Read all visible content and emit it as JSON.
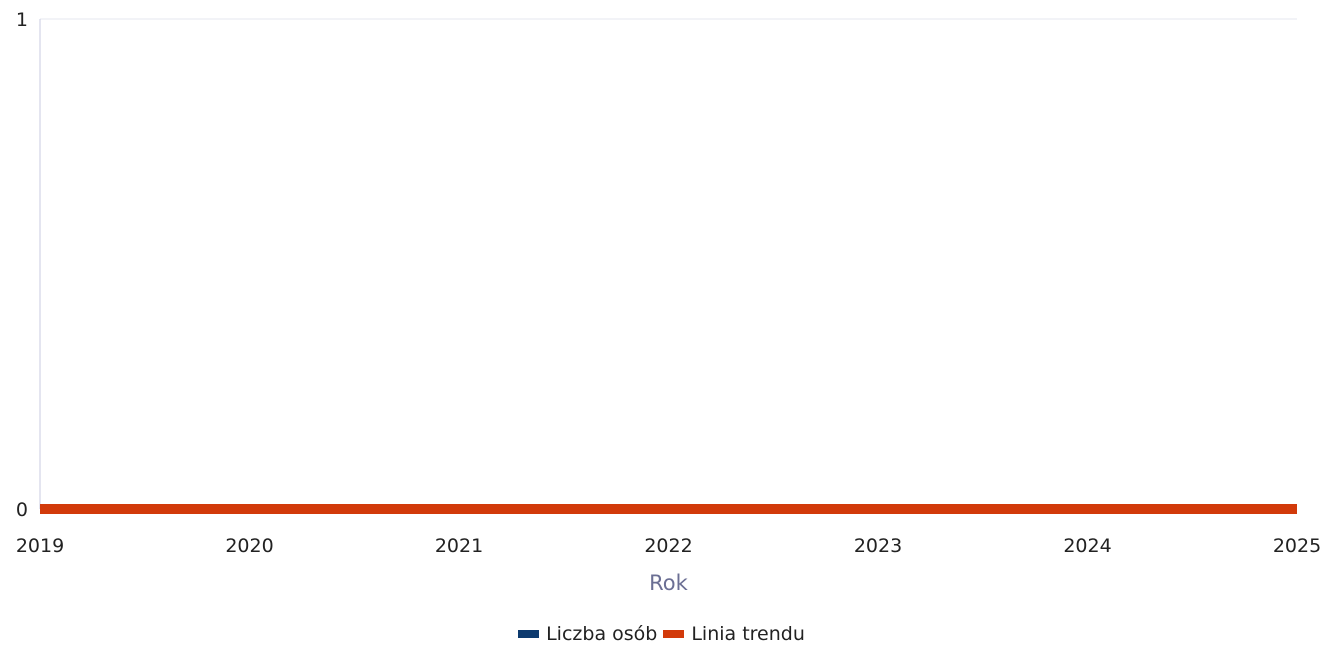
{
  "chart_data": {
    "type": "line",
    "title": "",
    "xlabel": "Rok",
    "ylabel": "",
    "x": [
      "2019",
      "2020",
      "2021",
      "2022",
      "2023",
      "2024",
      "2025"
    ],
    "ylim": [
      0,
      1
    ],
    "yticks": [
      "0",
      "1"
    ],
    "grid": true,
    "legend_position": "bottom",
    "series": [
      {
        "name": "Liczba osób",
        "color": "#0d3a6e",
        "values": [
          0,
          0,
          0,
          0,
          0,
          0,
          0
        ]
      },
      {
        "name": "Linia trendu",
        "color": "#d23a0a",
        "values": [
          0,
          0,
          0,
          0,
          0,
          0,
          0
        ]
      }
    ]
  }
}
